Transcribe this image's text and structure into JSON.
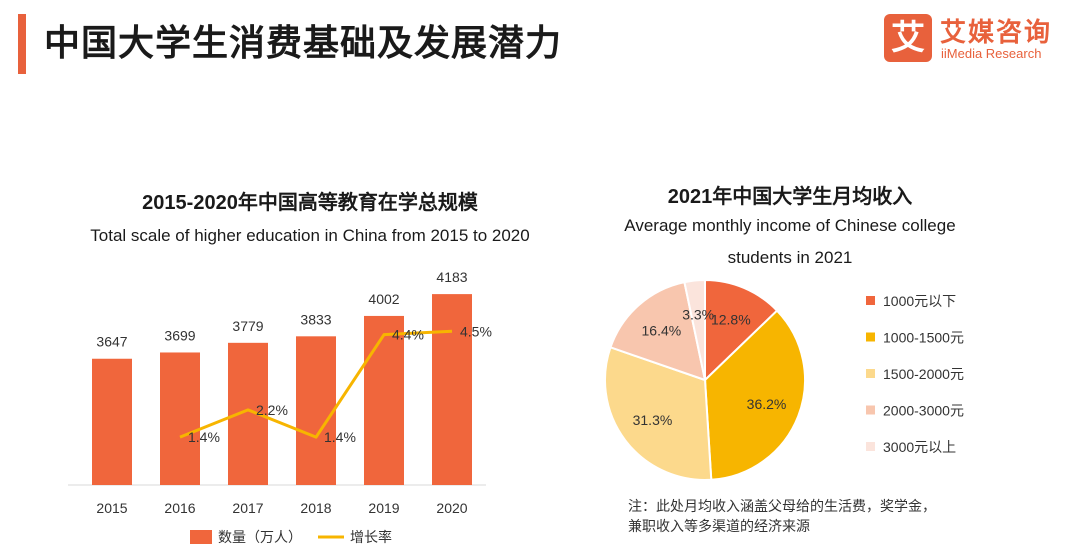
{
  "header": {
    "title": "中国大学生消费基础及发展潜力",
    "logo_cn": "艾媒咨询",
    "logo_en": "iiMedia Research",
    "logo_mark": "艾",
    "accent_color": "#e8613c"
  },
  "chart_data": [
    {
      "type": "bar",
      "title": "2015-2020年中国高等教育在学总规模",
      "subtitle": "Total scale of higher education in China from 2015 to 2020",
      "categories": [
        "2015",
        "2016",
        "2017",
        "2018",
        "2019",
        "2020"
      ],
      "series": [
        {
          "name": "数量（万人）",
          "type": "bar",
          "color": "#f0663c",
          "values": [
            3647,
            3699,
            3779,
            3833,
            4002,
            4183
          ],
          "labels": [
            "3647",
            "3699",
            "3779",
            "3833",
            "4002",
            "4183"
          ]
        },
        {
          "name": "增长率",
          "type": "line",
          "color": "#f7b500",
          "values": [
            null,
            1.4,
            2.2,
            1.4,
            4.4,
            4.5
          ],
          "labels": [
            "",
            "1.4%",
            "2.2%",
            "1.4%",
            "4.4%",
            "4.5%"
          ]
        }
      ],
      "ylim": [
        2600,
        4300
      ],
      "y2lim": [
        0,
        6
      ],
      "legend": "bottom"
    },
    {
      "type": "pie",
      "title": "2021年中国大学生月均收入",
      "subtitle_lines": [
        "Average monthly income of Chinese college",
        "students in 2021"
      ],
      "categories": [
        "1000元以下",
        "1000-1500元",
        "1500-2000元",
        "2000-3000元",
        "3000元以上"
      ],
      "values": [
        12.8,
        36.2,
        31.3,
        16.4,
        3.3
      ],
      "labels": [
        "12.8%",
        "36.2%",
        "31.3%",
        "16.4%",
        "3.3%"
      ],
      "colors": [
        "#f0663c",
        "#f7b500",
        "#fcd98c",
        "#f8c6ae",
        "#fbe4dc"
      ],
      "legend": "right",
      "note": "注：此处月均收入涵盖父母给的生活费，奖学金，兼职收入等多渠道的经济来源"
    }
  ]
}
